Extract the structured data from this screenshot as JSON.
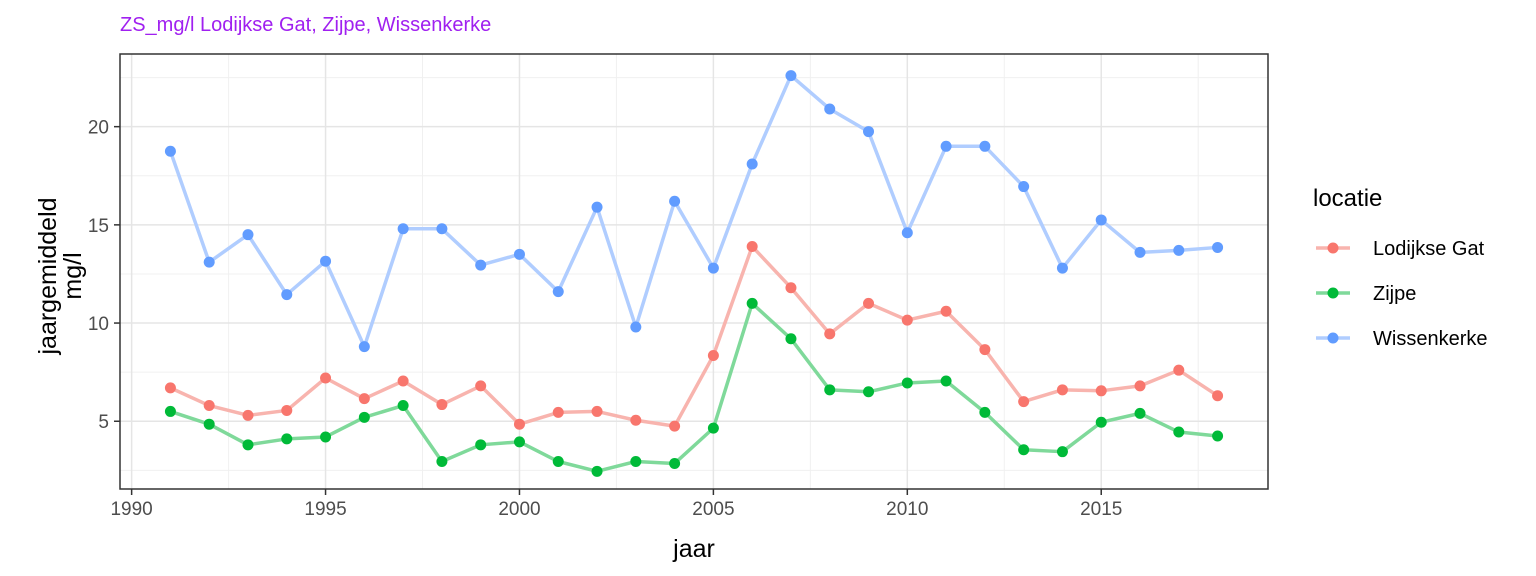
{
  "colors": {
    "title": "#a020f0",
    "series": [
      "#f8766d",
      "#00ba38",
      "#619cff"
    ],
    "series_line": [
      "#f8b4ae",
      "#7fd99a",
      "#b0cdff"
    ]
  },
  "chart_data": {
    "type": "line",
    "title": "ZS_mg/l Lodijkse Gat, Zijpe, Wissenkerke",
    "xlabel": "jaar",
    "ylabel": [
      "jaargemiddeld",
      "mg/l"
    ],
    "xlim": [
      1989.7,
      2019.3
    ],
    "ylim": [
      1.55,
      23.7
    ],
    "xticks": [
      1990,
      1995,
      2000,
      2005,
      2010,
      2015
    ],
    "yticks": [
      5,
      10,
      15,
      20
    ],
    "grid": true,
    "legend": {
      "title": "locatie",
      "position": "right"
    },
    "x": [
      1991,
      1992,
      1993,
      1994,
      1995,
      1996,
      1997,
      1998,
      1999,
      2000,
      2001,
      2002,
      2003,
      2004,
      2005,
      2006,
      2007,
      2008,
      2009,
      2010,
      2011,
      2012,
      2013,
      2014,
      2015,
      2016,
      2017,
      2018
    ],
    "series": [
      {
        "name": "Lodijkse Gat",
        "values": [
          6.7,
          5.8,
          5.3,
          5.55,
          7.2,
          6.15,
          7.05,
          5.85,
          6.8,
          4.85,
          5.45,
          5.5,
          5.05,
          4.75,
          8.35,
          13.9,
          11.8,
          9.45,
          11.0,
          10.15,
          10.6,
          8.65,
          6.0,
          6.6,
          6.55,
          6.8,
          7.6,
          6.3
        ]
      },
      {
        "name": "Zijpe",
        "values": [
          5.5,
          4.85,
          3.8,
          4.1,
          4.2,
          5.2,
          5.8,
          2.95,
          3.8,
          3.95,
          2.95,
          2.45,
          2.95,
          2.85,
          4.65,
          11.0,
          9.2,
          6.6,
          6.5,
          6.95,
          7.05,
          5.45,
          3.55,
          3.45,
          4.95,
          5.4,
          4.45,
          4.25
        ]
      },
      {
        "name": "Wissenkerke",
        "values": [
          18.75,
          13.1,
          14.5,
          11.45,
          13.15,
          8.8,
          14.8,
          14.8,
          12.95,
          13.5,
          11.6,
          15.9,
          9.8,
          16.2,
          12.8,
          18.1,
          22.6,
          20.9,
          19.75,
          14.6,
          19.0,
          19.0,
          16.95,
          12.8,
          15.25,
          13.6,
          13.7,
          13.85
        ]
      }
    ]
  }
}
